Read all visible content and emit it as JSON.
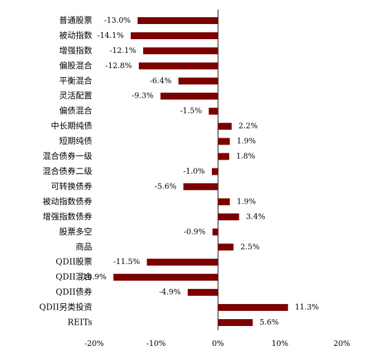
{
  "chart_data": {
    "type": "bar",
    "orientation": "horizontal",
    "color": "#7b0000",
    "categories": [
      "普通股票",
      "被动指数",
      "增强指数",
      "偏股混合",
      "平衡混合",
      "灵活配置",
      "偏债混合",
      "中长期纯债",
      "短期纯债",
      "混合债券一级",
      "混合债券二级",
      "可转换债券",
      "被动指数债券",
      "增强指数债券",
      "股票多空",
      "商品",
      "QDII股票",
      "QDII混合",
      "QDII债券",
      "QDII另类投资",
      "REITs"
    ],
    "values": [
      -13.0,
      -14.1,
      -12.1,
      -12.8,
      -6.4,
      -9.3,
      -1.5,
      2.2,
      1.9,
      1.8,
      -1.0,
      -5.6,
      1.9,
      3.4,
      -0.9,
      2.5,
      -11.5,
      -16.9,
      -4.9,
      11.3,
      5.6
    ],
    "value_labels": [
      "-13.0%",
      "-14.1%",
      "-12.1%",
      "-12.8%",
      "-6.4%",
      "-9.3%",
      "-1.5%",
      "2.2%",
      "1.9%",
      "1.8%",
      "-1.0%",
      "-5.6%",
      "1.9%",
      "3.4%",
      "-0.9%",
      "2.5%",
      "-11.5%",
      "-16.9%",
      "-4.9%",
      "11.3%",
      "5.6%"
    ],
    "xlim": [
      -20,
      20
    ],
    "xticks": [
      {
        "value": -20,
        "label": "-20%"
      },
      {
        "value": -10,
        "label": "-10%"
      },
      {
        "value": 0,
        "label": "0%"
      },
      {
        "value": 10,
        "label": "10%"
      },
      {
        "value": 20,
        "label": "20%"
      }
    ]
  }
}
